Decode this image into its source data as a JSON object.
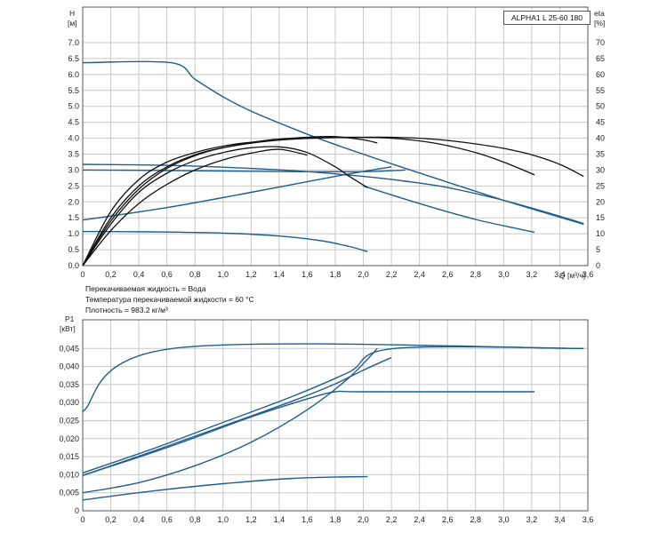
{
  "model": "ALPHA1 L 25-60  180",
  "notes": [
    "Перекачиваемая жидкость = Вода",
    "Температура перекачиваемой жидкости = 60 °C",
    "Плотность = 983.2 кг/м³"
  ],
  "colors": {
    "head": "#1f5e8c",
    "efficiency": "#111111",
    "power": "#1f5e8c"
  },
  "chart_data": [
    {
      "type": "line",
      "title": "",
      "xlabel": "Q [м³/ч]",
      "ylabel": "H [м]",
      "y2label": "eta [%]",
      "xlim": [
        0,
        3.6
      ],
      "ylim": [
        0,
        7.0
      ],
      "y2lim": [
        0,
        70
      ],
      "xticks": [
        "0",
        "0,2",
        "0,4",
        "0,6",
        "0,8",
        "1,0",
        "1,2",
        "1,4",
        "1,6",
        "1,8",
        "2,0",
        "2,2",
        "2,4",
        "2,6",
        "2,8",
        "3,0",
        "3,2",
        "3,4",
        "3,6"
      ],
      "yticks": [
        "0.0",
        "0.5",
        "1.0",
        "1.5",
        "2.0",
        "2.5",
        "3.0",
        "3.5",
        "4.0",
        "4.5",
        "5.0",
        "5.5",
        "6.0",
        "6.5",
        "7.0"
      ],
      "y2ticks": [
        "0",
        "5",
        "10",
        "15",
        "20",
        "25",
        "30",
        "35",
        "40",
        "45",
        "50",
        "55",
        "60",
        "65",
        "70"
      ],
      "grid": true,
      "series": [
        {
          "axis": "left",
          "kind": "head",
          "x": [
            0,
            0.63,
            0.8,
            1.0,
            1.2,
            1.5,
            1.8,
            2.2,
            2.6,
            3.0,
            3.3,
            3.57
          ],
          "y": [
            6.37,
            6.37,
            5.85,
            5.3,
            4.85,
            4.3,
            3.8,
            3.2,
            2.62,
            2.05,
            1.65,
            1.3
          ]
        },
        {
          "axis": "left",
          "kind": "head",
          "x": [
            0,
            0.6,
            1.2,
            1.6,
            2.0,
            2.3,
            2.6,
            3.0,
            3.3,
            3.57
          ],
          "y": [
            3.18,
            3.15,
            3.05,
            2.95,
            2.8,
            2.65,
            2.45,
            2.05,
            1.68,
            1.32
          ]
        },
        {
          "axis": "left",
          "kind": "head",
          "x": [
            0,
            0.5,
            1.0,
            1.5,
            2.0,
            2.3
          ],
          "y": [
            3.0,
            2.99,
            2.97,
            2.95,
            2.95,
            3.0
          ]
        },
        {
          "axis": "left",
          "kind": "head",
          "x": [
            0,
            0.6,
            1.2,
            1.8,
            2.2
          ],
          "y": [
            1.43,
            1.82,
            2.3,
            2.8,
            3.1
          ]
        },
        {
          "axis": "left",
          "kind": "head",
          "x": [
            0,
            0.5,
            1.0,
            1.4,
            1.7,
            1.9,
            2.03
          ],
          "y": [
            1.07,
            1.06,
            1.02,
            0.93,
            0.78,
            0.6,
            0.44
          ]
        },
        {
          "axis": "left",
          "kind": "head",
          "x": [
            2.0,
            2.4,
            2.8,
            3.22
          ],
          "y": [
            2.5,
            1.95,
            1.45,
            1.05
          ]
        },
        {
          "axis": "right",
          "kind": "efficiency",
          "x": [
            0,
            0.2,
            0.4,
            0.6,
            0.8,
            1.0,
            1.2,
            1.5,
            1.8,
            2.0,
            2.2,
            2.4,
            2.6,
            2.8,
            3.0,
            3.2,
            3.4,
            3.57
          ],
          "y": [
            0,
            17,
            27,
            32.5,
            35.5,
            37.5,
            38.7,
            39.7,
            40.2,
            40.3,
            40.3,
            40.0,
            39.3,
            38.2,
            36.8,
            34.8,
            31.8,
            28
          ]
        },
        {
          "axis": "right",
          "kind": "efficiency",
          "x": [
            0,
            0.2,
            0.4,
            0.6,
            0.8,
            1.0,
            1.3,
            1.6,
            1.9,
            2.2,
            2.5,
            2.8,
            3.0,
            3.22
          ],
          "y": [
            0,
            15,
            25,
            31,
            34.8,
            37,
            39,
            40,
            40.3,
            40,
            38.5,
            35.5,
            32.5,
            28.5
          ]
        },
        {
          "axis": "right",
          "kind": "efficiency",
          "x": [
            0,
            0.2,
            0.4,
            0.6,
            0.8,
            1.0,
            1.3,
            1.6,
            1.8,
            2.0,
            2.1
          ],
          "y": [
            0,
            14,
            24,
            30.5,
            34.5,
            37,
            39.3,
            40.3,
            40.5,
            39.5,
            38.5
          ]
        },
        {
          "axis": "right",
          "kind": "efficiency",
          "x": [
            0,
            0.2,
            0.4,
            0.6,
            0.8,
            1.0,
            1.2,
            1.4,
            1.6,
            1.8,
            1.9,
            2.03
          ],
          "y": [
            0,
            13,
            23,
            29,
            33,
            35.5,
            37,
            37.3,
            35.5,
            31,
            28,
            24.5
          ]
        },
        {
          "axis": "right",
          "kind": "efficiency",
          "x": [
            0,
            0.2,
            0.4,
            0.6,
            0.8,
            1.0,
            1.2,
            1.4,
            1.6
          ],
          "y": [
            0,
            11,
            19.5,
            25.5,
            30,
            33.2,
            35.3,
            36.5,
            34.7
          ]
        }
      ]
    },
    {
      "type": "line",
      "title": "",
      "xlabel": "",
      "ylabel": "P1 [кВт]",
      "xlim": [
        0,
        3.6
      ],
      "ylim": [
        0,
        0.05
      ],
      "xticks": [
        "0",
        "0,2",
        "0,4",
        "0,6",
        "0,8",
        "1,0",
        "1,2",
        "1,4",
        "1,6",
        "1,8",
        "2,0",
        "2,2",
        "2,4",
        "2,6",
        "2,8",
        "3,0",
        "3,2",
        "3,4",
        "3,6"
      ],
      "yticks": [
        "0",
        "0,005",
        "0,010",
        "0,015",
        "0,020",
        "0,025",
        "0,030",
        "0,035",
        "0,040",
        "0,045"
      ],
      "grid": true,
      "series": [
        {
          "x": [
            0,
            0.64,
            3.57
          ],
          "y": [
            0.0275,
            0.045,
            0.045
          ]
        },
        {
          "x": [
            0,
            0.5,
            1.0,
            1.5,
            1.9,
            2.22,
            3.57
          ],
          "y": [
            0.0105,
            0.0172,
            0.0245,
            0.0318,
            0.0385,
            0.045,
            0.045
          ]
        },
        {
          "x": [
            0,
            0.5,
            1.0,
            1.5,
            1.8,
            2.0,
            2.2
          ],
          "y": [
            0.0098,
            0.0165,
            0.0235,
            0.0305,
            0.0352,
            0.039,
            0.0425
          ]
        },
        {
          "x": [
            0,
            0.4,
            0.8,
            1.2,
            1.6,
            1.9,
            2.1
          ],
          "y": [
            0.005,
            0.0078,
            0.0125,
            0.019,
            0.028,
            0.037,
            0.045
          ]
        },
        {
          "x": [
            0,
            0.6,
            1.2,
            1.6,
            1.8,
            2.0,
            3.22
          ],
          "y": [
            0.0098,
            0.0175,
            0.026,
            0.031,
            0.033,
            0.033,
            0.033
          ]
        },
        {
          "x": [
            0,
            0.5,
            1.0,
            1.5,
            2.03
          ],
          "y": [
            0.003,
            0.0055,
            0.0075,
            0.009,
            0.0095
          ]
        }
      ]
    }
  ]
}
